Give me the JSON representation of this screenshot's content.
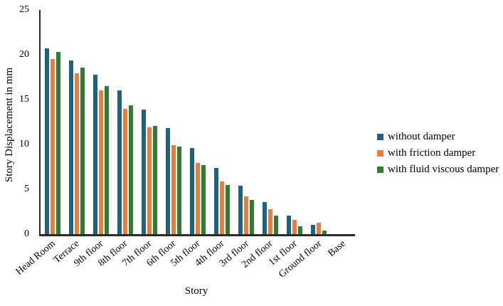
{
  "chart_data": {
    "type": "bar",
    "title": "",
    "xlabel": "Story",
    "ylabel": "Story Displacement in mm",
    "ylim": [
      0,
      25
    ],
    "yticks": [
      0,
      5,
      10,
      15,
      20,
      25
    ],
    "grid": false,
    "legend_position": "right",
    "categories": [
      "Head Room",
      "Terrace",
      "9th floor",
      "8th floor",
      "7th floor",
      "6th floor",
      "5th floor",
      "4th floor",
      "3rd floor",
      "2nd floor",
      "1st floor",
      "Ground floor",
      "Base"
    ],
    "series": [
      {
        "name": "without damper",
        "color": "#1F627F",
        "values": [
          20.7,
          19.4,
          17.8,
          16.0,
          13.9,
          11.8,
          9.6,
          7.4,
          5.4,
          3.6,
          2.1,
          1.0,
          0
        ]
      },
      {
        "name": "with friction damper",
        "color": "#E87E3C",
        "values": [
          19.5,
          17.9,
          16.0,
          14.0,
          11.9,
          9.9,
          7.9,
          5.9,
          4.2,
          2.8,
          1.6,
          1.3,
          0
        ]
      },
      {
        "name": "with fluid viscous damper",
        "color": "#2E7D32",
        "values": [
          20.3,
          18.6,
          16.5,
          14.4,
          12.1,
          9.8,
          7.7,
          5.5,
          3.8,
          2.1,
          0.9,
          0.4,
          0
        ]
      }
    ]
  },
  "colors": {
    "axis": "#2b2b2b",
    "text": "#000000",
    "background": "#ffffff"
  }
}
